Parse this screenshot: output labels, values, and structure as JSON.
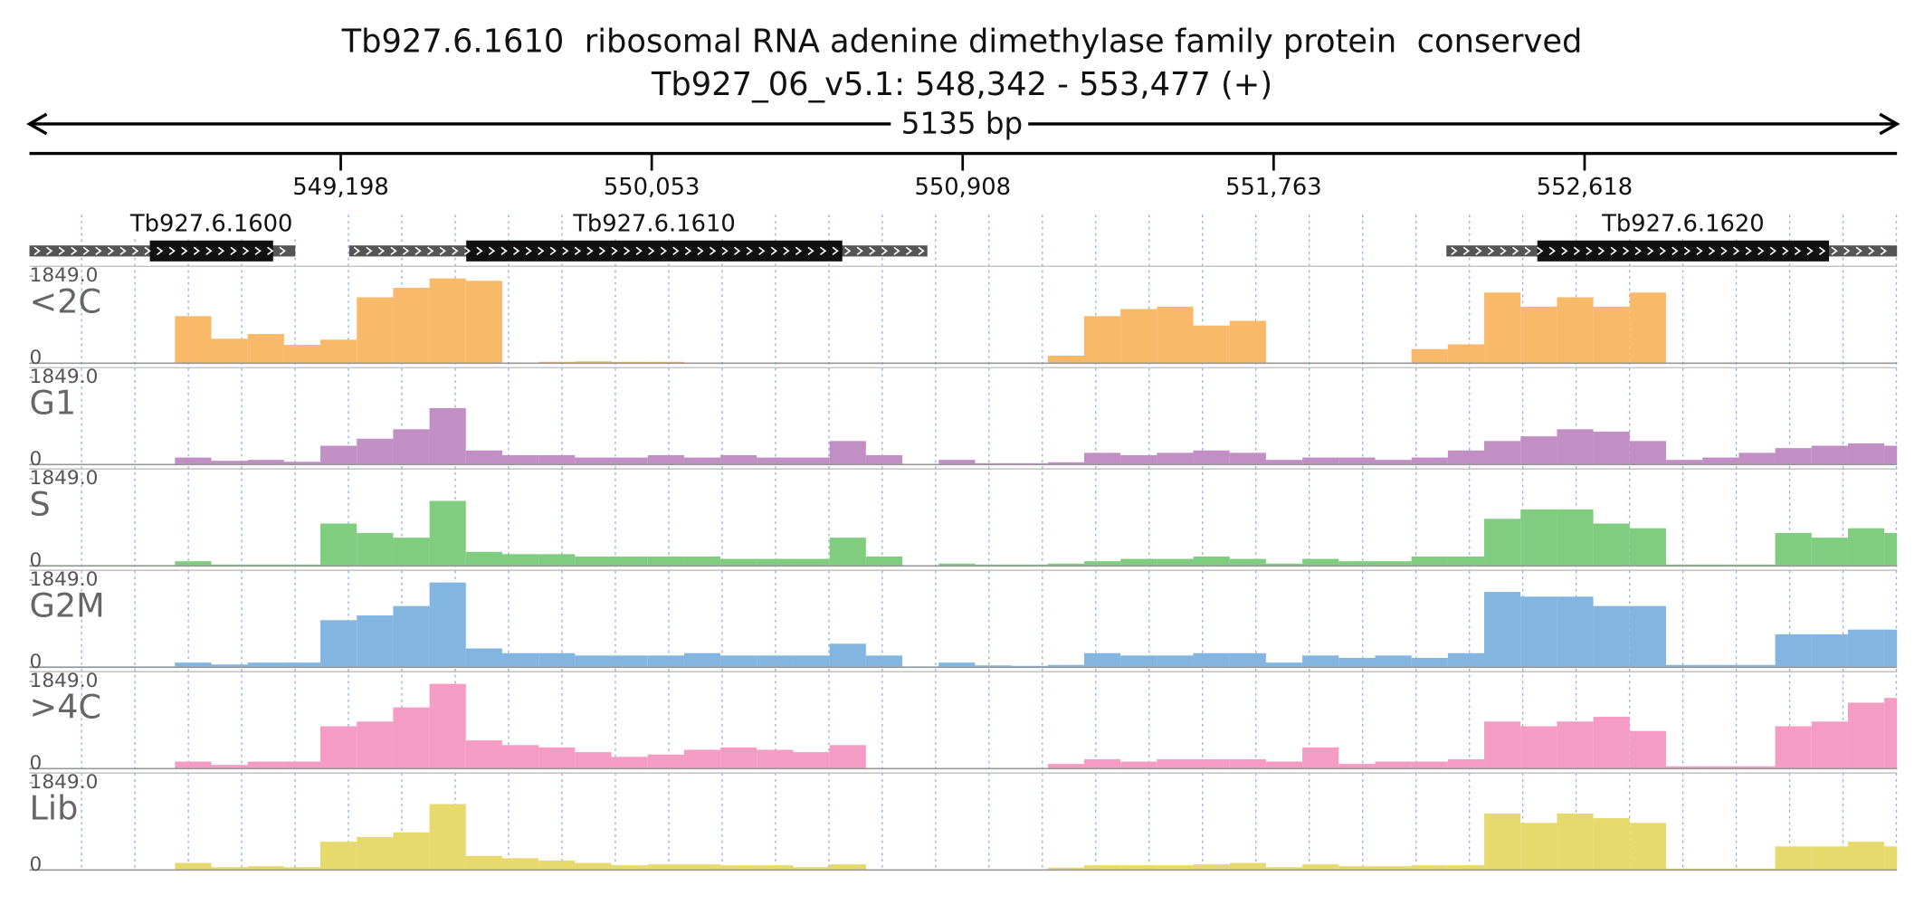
{
  "chart_data": {
    "type": "histogram",
    "title": "Tb927.6.1610  ribosomal RNA adenine dimethylase family protein  conserved",
    "subtitle": "Tb927_06_v5.1: 548,342 - 553,477 (+)",
    "span_label": "5135 bp",
    "xlim": [
      548342,
      553477
    ],
    "xticks": [
      {
        "value": 549198,
        "label": "549,198"
      },
      {
        "value": 550053,
        "label": "550,053"
      },
      {
        "value": 550908,
        "label": "550,908"
      },
      {
        "value": 551763,
        "label": "551,763"
      },
      {
        "value": 552618,
        "label": "552,618"
      }
    ],
    "genes": [
      {
        "name": "Tb927.6.1600",
        "start": 548342,
        "end": 549073,
        "cds_start": 548673,
        "cds_end": 549012,
        "strand": "-"
      },
      {
        "name": "Tb927.6.1610",
        "start": 549221,
        "end": 550811,
        "cds_start": 549543,
        "cds_end": 550577,
        "strand": "-"
      },
      {
        "name": "Tb927.6.1620",
        "start": 552238,
        "end": 553477,
        "cds_start": 552488,
        "cds_end": 553290,
        "strand": "-"
      }
    ],
    "ylim": [
      0,
      1849
    ],
    "yticks": [
      0,
      {
        "value": 1849,
        "label": "1849.0"
      }
    ],
    "bins": [
      548342,
      548442,
      548542,
      548642,
      548742,
      548842,
      548942,
      549042,
      549142,
      549242,
      549342,
      549442,
      549542,
      549642,
      549742,
      549842,
      549942,
      550042,
      550142,
      550242,
      550342,
      550442,
      550542,
      550642,
      550742,
      550842,
      550942,
      551042,
      551142,
      551242,
      551342,
      551442,
      551542,
      551642,
      551742,
      551842,
      551942,
      552042,
      552142,
      552242,
      552342,
      552442,
      552542,
      552642,
      552742,
      552842,
      552942,
      553042,
      553142,
      553242,
      553342,
      553442,
      553477
    ],
    "series": [
      {
        "name": "<2C",
        "color": "#f8b96b",
        "values": [
          0,
          0,
          0,
          0,
          1000,
          520,
          620,
          390,
          500,
          1400,
          1600,
          1800,
          1750,
          0,
          30,
          40,
          30,
          30,
          0,
          0,
          0,
          0,
          0,
          0,
          0,
          10,
          0,
          0,
          160,
          1000,
          1150,
          1200,
          800,
          900,
          0,
          0,
          0,
          0,
          300,
          400,
          1500,
          1200,
          1400,
          1200,
          1500,
          0,
          0,
          0,
          0,
          0,
          0,
          0
        ]
      },
      {
        "name": "G1",
        "color": "#c18fc4",
        "values": [
          0,
          0,
          0,
          0,
          150,
          80,
          100,
          60,
          400,
          550,
          750,
          1200,
          300,
          200,
          200,
          150,
          150,
          200,
          150,
          200,
          150,
          150,
          500,
          200,
          0,
          100,
          30,
          30,
          50,
          250,
          200,
          250,
          300,
          250,
          100,
          150,
          150,
          100,
          150,
          300,
          500,
          600,
          750,
          700,
          500,
          100,
          150,
          250,
          350,
          400,
          450,
          400
        ]
      },
      {
        "name": "S",
        "color": "#80cd80",
        "values": [
          20,
          20,
          20,
          20,
          100,
          30,
          30,
          30,
          900,
          700,
          600,
          1380,
          300,
          250,
          250,
          200,
          200,
          200,
          200,
          150,
          150,
          150,
          600,
          200,
          10,
          50,
          30,
          30,
          50,
          100,
          150,
          150,
          200,
          150,
          50,
          150,
          100,
          100,
          200,
          200,
          1000,
          1200,
          1200,
          900,
          800,
          30,
          30,
          30,
          700,
          600,
          800,
          700
        ]
      },
      {
        "name": "G2M",
        "color": "#82b6e1",
        "values": [
          20,
          20,
          20,
          20,
          100,
          60,
          100,
          100,
          1000,
          1100,
          1300,
          1800,
          400,
          300,
          300,
          250,
          250,
          250,
          300,
          250,
          250,
          250,
          500,
          250,
          20,
          100,
          40,
          30,
          50,
          300,
          250,
          250,
          300,
          300,
          100,
          250,
          200,
          250,
          200,
          300,
          1600,
          1500,
          1500,
          1300,
          1300,
          50,
          50,
          50,
          700,
          700,
          800,
          800
        ]
      },
      {
        "name": ">4C",
        "color": "#f59cc5",
        "values": [
          10,
          10,
          10,
          10,
          150,
          80,
          150,
          150,
          900,
          1000,
          1300,
          1800,
          600,
          500,
          450,
          350,
          250,
          300,
          400,
          450,
          400,
          350,
          500,
          0,
          10,
          10,
          10,
          10,
          100,
          200,
          150,
          200,
          200,
          200,
          150,
          450,
          100,
          150,
          150,
          200,
          1000,
          900,
          1000,
          1100,
          800,
          50,
          50,
          50,
          900,
          1000,
          1400,
          1500
        ]
      },
      {
        "name": "Lib",
        "color": "#e5da6b",
        "values": [
          10,
          10,
          10,
          10,
          150,
          60,
          80,
          60,
          600,
          700,
          800,
          1400,
          300,
          250,
          200,
          150,
          100,
          120,
          120,
          100,
          100,
          60,
          120,
          0,
          10,
          10,
          10,
          10,
          50,
          100,
          100,
          100,
          120,
          150,
          60,
          120,
          80,
          80,
          100,
          100,
          1200,
          1000,
          1200,
          1100,
          1000,
          30,
          30,
          30,
          500,
          500,
          600,
          500
        ]
      }
    ]
  }
}
